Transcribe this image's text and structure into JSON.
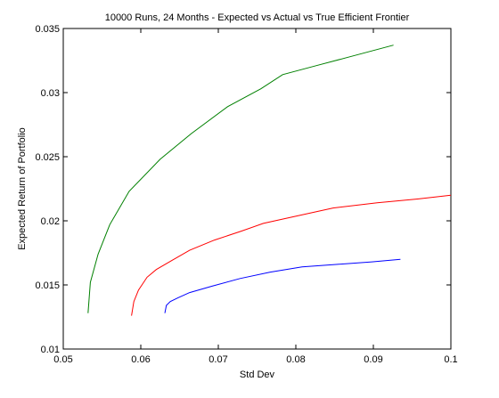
{
  "chart_data": {
    "type": "line",
    "title": "10000 Runs, 24 Months - Expected vs Actual vs True Efficient Frontier",
    "xlabel": "Std Dev",
    "ylabel": "Expected Return of Portfolio",
    "xlim": [
      0.05,
      0.1
    ],
    "ylim": [
      0.01,
      0.035
    ],
    "xticks": [
      0.05,
      0.06,
      0.07,
      0.08,
      0.09,
      0.1
    ],
    "xtick_labels": [
      "0.05",
      "0.06",
      "0.07",
      "0.08",
      "0.09",
      "0.1"
    ],
    "yticks": [
      0.01,
      0.015,
      0.02,
      0.025,
      0.03,
      0.035
    ],
    "ytick_labels": [
      "0.01",
      "0.015",
      "0.02",
      "0.025",
      "0.03",
      "0.035"
    ],
    "grid": false,
    "legend": "none",
    "series": [
      {
        "color": "#008000",
        "x": [
          0.0532,
          0.0535,
          0.0545,
          0.056,
          0.0585,
          0.0625,
          0.0665,
          0.0712,
          0.0755,
          0.0783,
          0.0826,
          0.087,
          0.0926
        ],
        "y": [
          0.0128,
          0.0152,
          0.0174,
          0.0197,
          0.0223,
          0.0248,
          0.0268,
          0.0289,
          0.0303,
          0.0314,
          0.0321,
          0.0328,
          0.0337
        ]
      },
      {
        "color": "#ff0000",
        "x": [
          0.0588,
          0.0591,
          0.0597,
          0.0608,
          0.062,
          0.064,
          0.0663,
          0.0695,
          0.073,
          0.0758,
          0.0803,
          0.0848,
          0.0905,
          0.0957,
          0.1
        ],
        "y": [
          0.0126,
          0.0137,
          0.0146,
          0.0156,
          0.0162,
          0.0169,
          0.0177,
          0.0185,
          0.0192,
          0.0198,
          0.0204,
          0.021,
          0.0214,
          0.0217,
          0.022
        ]
      },
      {
        "color": "#0000ff",
        "x": [
          0.0631,
          0.0633,
          0.0638,
          0.0648,
          0.0663,
          0.0692,
          0.0728,
          0.0767,
          0.0808,
          0.0852,
          0.0898,
          0.0935
        ],
        "y": [
          0.0128,
          0.0134,
          0.0137,
          0.014,
          0.0144,
          0.0149,
          0.0155,
          0.016,
          0.0164,
          0.0166,
          0.0168,
          0.017
        ]
      }
    ]
  }
}
